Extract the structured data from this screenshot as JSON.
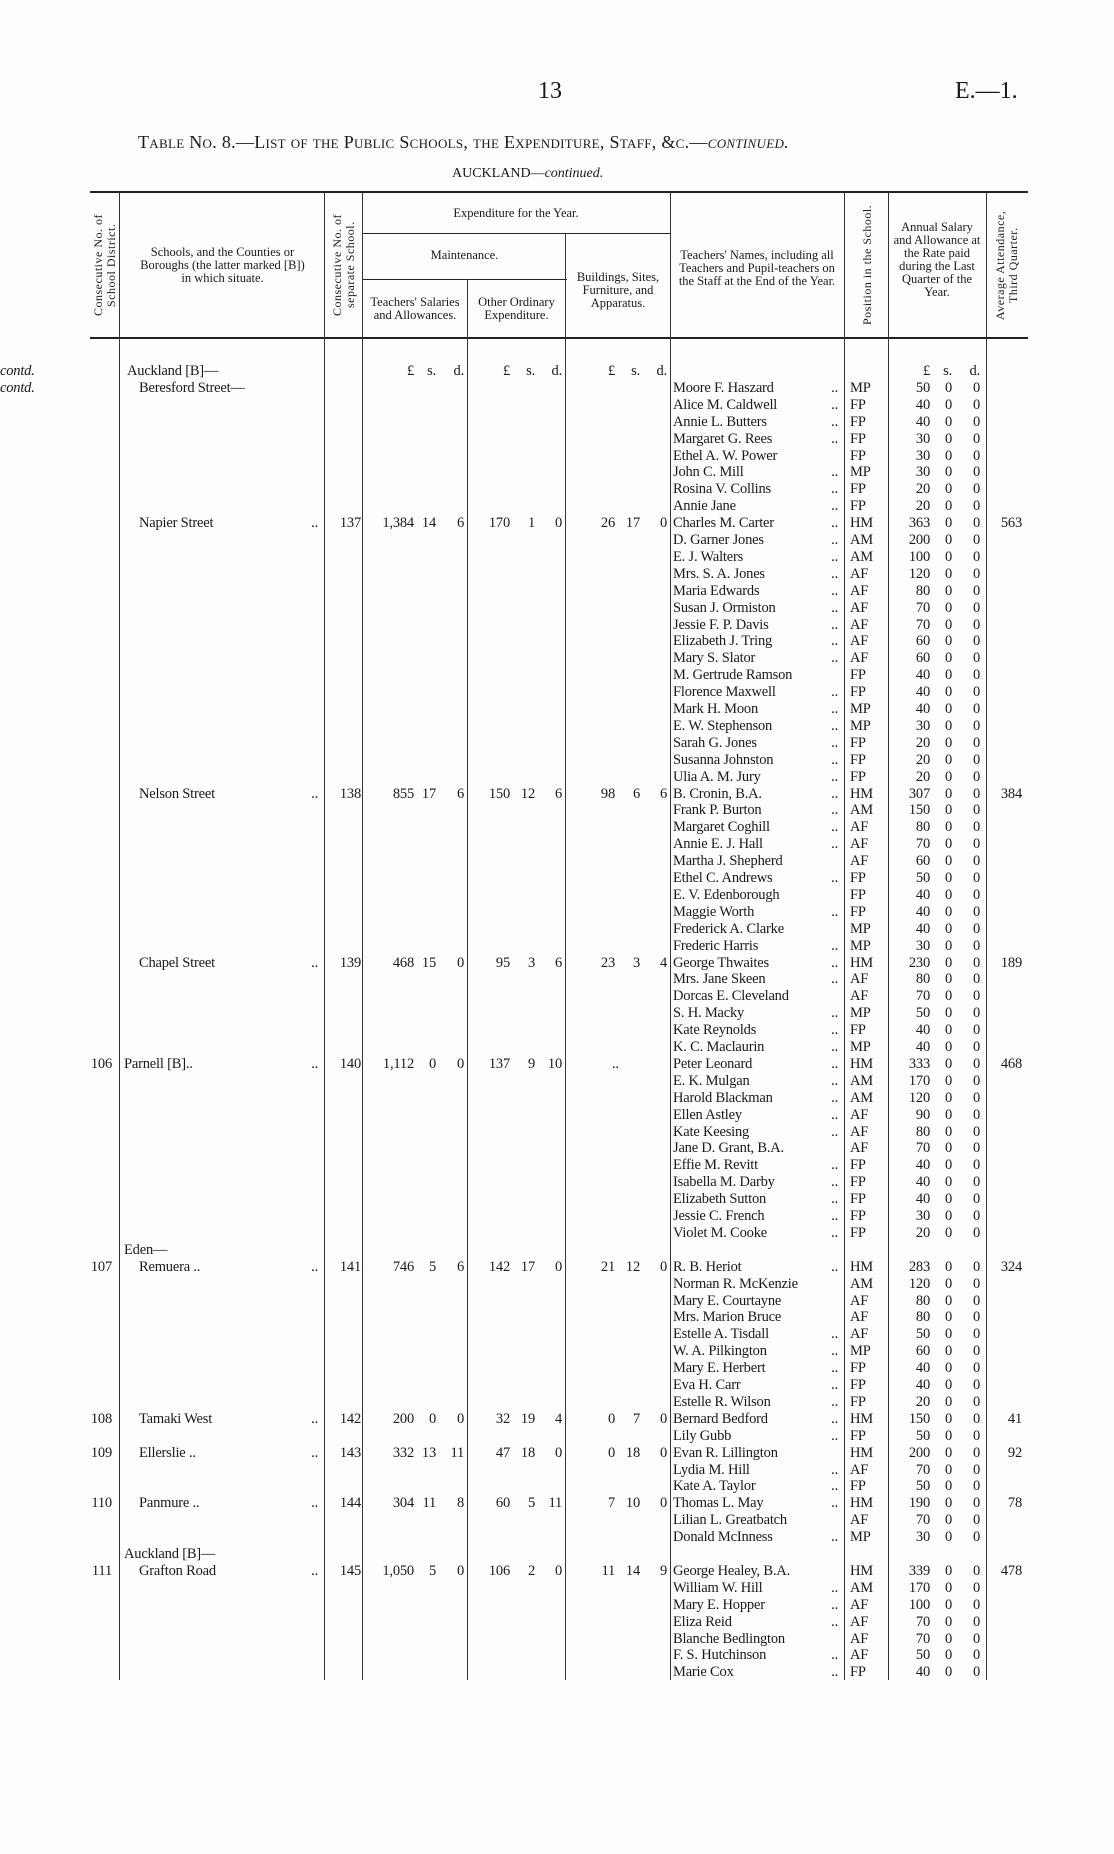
{
  "page": {
    "number": "13",
    "ref": "E.—1."
  },
  "title": {
    "prefix": "Table No. 8.—List of the Public Schools, the Expenditure, Staff, &c.—",
    "italic": "continued."
  },
  "subtitle": {
    "prefix": "AUCKLAND—",
    "italic": "continued."
  },
  "headers": {
    "district": "Consecutive No. of School District.",
    "schools": "Schools, and the Counties or Boroughs (the latter marked [B]) in which situate.",
    "separate": "Consecutive No. of separate School.",
    "expenditure": "Expenditure for the Year.",
    "maintenance": "Maintenance.",
    "teachers_salaries": "Teachers' Salaries and Allowances.",
    "other": "Other Ordinary Expenditure.",
    "buildings": "Buildings, Sites, Furniture, and Apparatus.",
    "names": "Teachers' Names, including all Teachers and Pupil-teachers on the Staff at the End of the Year.",
    "position": "Position in the School.",
    "salary": "Annual Salary and Allowance at the Rate paid during the Last Quarter of the Year.",
    "attendance": "Average Attendance, Third Quarter."
  },
  "units": {
    "pound": "£",
    "s": "s.",
    "d": "d."
  },
  "continued_heading": {
    "text": "Auckland [B]—",
    "italic": "contd."
  },
  "schools": [
    {
      "district": "",
      "prefix": "",
      "name": "Beresford Street—",
      "name_italic": "contd.",
      "leader": "",
      "sep": "",
      "ts": [
        "",
        "",
        ""
      ],
      "oe": [
        "",
        "",
        ""
      ],
      "bs": [
        "",
        "",
        ""
      ],
      "att": "",
      "staff": [
        [
          "Moore F. Haszard",
          "..",
          "MP",
          "50",
          "0",
          "0"
        ],
        [
          "Alice M. Caldwell",
          "..",
          "FP",
          "40",
          "0",
          "0"
        ],
        [
          "Annie L. Butters",
          "..",
          "FP",
          "40",
          "0",
          "0"
        ],
        [
          "Margaret G. Rees",
          "..",
          "FP",
          "30",
          "0",
          "0"
        ],
        [
          "Ethel A. W. Power",
          "",
          "FP",
          "30",
          "0",
          "0"
        ],
        [
          "John C. Mill",
          "..",
          "MP",
          "30",
          "0",
          "0"
        ],
        [
          "Rosina V. Collins",
          "..",
          "FP",
          "20",
          "0",
          "0"
        ],
        [
          "Annie Jane",
          "..",
          "FP",
          "20",
          "0",
          "0"
        ]
      ]
    },
    {
      "district": "",
      "prefix": "",
      "name": "Napier Street",
      "name_italic": "",
      "leader": "..",
      "sep": "137",
      "ts": [
        "1,384",
        "14",
        "6"
      ],
      "oe": [
        "170",
        "1",
        "0"
      ],
      "bs": [
        "26",
        "17",
        "0"
      ],
      "att": "563",
      "staff": [
        [
          "Charles M. Carter",
          "..",
          "HM",
          "363",
          "0",
          "0"
        ],
        [
          "D. Garner Jones",
          "..",
          "AM",
          "200",
          "0",
          "0"
        ],
        [
          "E. J. Walters",
          "..",
          "AM",
          "100",
          "0",
          "0"
        ],
        [
          "Mrs. S. A. Jones",
          "..",
          "AF",
          "120",
          "0",
          "0"
        ],
        [
          "Maria Edwards",
          "..",
          "AF",
          "80",
          "0",
          "0"
        ],
        [
          "Susan J. Ormiston",
          "..",
          "AF",
          "70",
          "0",
          "0"
        ],
        [
          "Jessie F. P. Davis",
          "..",
          "AF",
          "70",
          "0",
          "0"
        ],
        [
          "Elizabeth J. Tring",
          "..",
          "AF",
          "60",
          "0",
          "0"
        ],
        [
          "Mary S. Slator",
          "..",
          "AF",
          "60",
          "0",
          "0"
        ],
        [
          "M. Gertrude Ramson",
          "",
          "FP",
          "40",
          "0",
          "0"
        ],
        [
          "Florence Maxwell",
          "..",
          "FP",
          "40",
          "0",
          "0"
        ],
        [
          "Mark H. Moon",
          "..",
          "MP",
          "40",
          "0",
          "0"
        ],
        [
          "E. W. Stephenson",
          "..",
          "MP",
          "30",
          "0",
          "0"
        ],
        [
          "Sarah G. Jones",
          "..",
          "FP",
          "20",
          "0",
          "0"
        ],
        [
          "Susanna Johnston",
          "..",
          "FP",
          "20",
          "0",
          "0"
        ],
        [
          "Ulia A. M. Jury",
          "..",
          "FP",
          "20",
          "0",
          "0"
        ]
      ]
    },
    {
      "district": "",
      "prefix": "",
      "name": "Nelson Street",
      "name_italic": "",
      "leader": "..",
      "sep": "138",
      "ts": [
        "855",
        "17",
        "6"
      ],
      "oe": [
        "150",
        "12",
        "6"
      ],
      "bs": [
        "98",
        "6",
        "6"
      ],
      "att": "384",
      "staff": [
        [
          "B. Cronin, B.A.",
          "..",
          "HM",
          "307",
          "0",
          "0"
        ],
        [
          "Frank P. Burton",
          "..",
          "AM",
          "150",
          "0",
          "0"
        ],
        [
          "Margaret Coghill",
          "..",
          "AF",
          "80",
          "0",
          "0"
        ],
        [
          "Annie E. J. Hall",
          "..",
          "AF",
          "70",
          "0",
          "0"
        ],
        [
          "Martha J. Shepherd",
          "",
          "AF",
          "60",
          "0",
          "0"
        ],
        [
          "Ethel C. Andrews",
          "..",
          "FP",
          "50",
          "0",
          "0"
        ],
        [
          "E. V. Edenborough",
          "",
          "FP",
          "40",
          "0",
          "0"
        ],
        [
          "Maggie Worth",
          "..",
          "FP",
          "40",
          "0",
          "0"
        ],
        [
          "Frederick A. Clarke",
          "",
          "MP",
          "40",
          "0",
          "0"
        ],
        [
          "Frederic Harris",
          "..",
          "MP",
          "30",
          "0",
          "0"
        ]
      ]
    },
    {
      "district": "",
      "prefix": "",
      "name": "Chapel Street",
      "name_italic": "",
      "leader": "..",
      "sep": "139",
      "ts": [
        "468",
        "15",
        "0"
      ],
      "oe": [
        "95",
        "3",
        "6"
      ],
      "bs": [
        "23",
        "3",
        "4"
      ],
      "att": "189",
      "staff": [
        [
          "George Thwaites",
          "..",
          "HM",
          "230",
          "0",
          "0"
        ],
        [
          "Mrs. Jane Skeen",
          "..",
          "AF",
          "80",
          "0",
          "0"
        ],
        [
          "Dorcas E. Cleveland",
          "",
          "AF",
          "70",
          "0",
          "0"
        ],
        [
          "S. H. Macky",
          "..",
          "MP",
          "50",
          "0",
          "0"
        ],
        [
          "Kate Reynolds",
          "..",
          "FP",
          "40",
          "0",
          "0"
        ],
        [
          "K. C. Maclaurin",
          "..",
          "MP",
          "40",
          "0",
          "0"
        ]
      ]
    },
    {
      "district": "106",
      "prefix": "",
      "name": "Parnell [B]..",
      "name_italic": "",
      "leader": "..",
      "sep": "140",
      "ts": [
        "1,112",
        "0",
        "0"
      ],
      "oe": [
        "137",
        "9",
        "10"
      ],
      "bs": [
        "..",
        "",
        ""
      ],
      "att": "468",
      "flush": true,
      "staff": [
        [
          "Peter Leonard",
          "..",
          "HM",
          "333",
          "0",
          "0"
        ],
        [
          "E. K. Mulgan",
          "..",
          "AM",
          "170",
          "0",
          "0"
        ],
        [
          "Harold Blackman",
          "..",
          "AM",
          "120",
          "0",
          "0"
        ],
        [
          "Ellen Astley",
          "..",
          "AF",
          "90",
          "0",
          "0"
        ],
        [
          "Kate Keesing",
          "..",
          "AF",
          "80",
          "0",
          "0"
        ],
        [
          "Jane D. Grant, B.A.",
          "",
          "AF",
          "70",
          "0",
          "0"
        ],
        [
          "Effie M. Revitt",
          "..",
          "FP",
          "40",
          "0",
          "0"
        ],
        [
          "Isabella M. Darby",
          "..",
          "FP",
          "40",
          "0",
          "0"
        ],
        [
          "Elizabeth Sutton",
          "..",
          "FP",
          "40",
          "0",
          "0"
        ],
        [
          "Jessie C. French",
          "..",
          "FP",
          "30",
          "0",
          "0"
        ],
        [
          "Violet M. Cooke",
          "..",
          "FP",
          "20",
          "0",
          "0"
        ]
      ]
    },
    {
      "district": "107",
      "prefix": "Eden—",
      "name": "Remuera  ..",
      "name_italic": "",
      "leader": "..",
      "sep": "141",
      "ts": [
        "746",
        "5",
        "6"
      ],
      "oe": [
        "142",
        "17",
        "0"
      ],
      "bs": [
        "21",
        "12",
        "0"
      ],
      "att": "324",
      "staff": [
        [
          "R. B. Heriot",
          "..",
          "HM",
          "283",
          "0",
          "0"
        ],
        [
          "Norman R. McKenzie",
          "",
          "AM",
          "120",
          "0",
          "0"
        ],
        [
          "Mary E. Courtayne",
          "",
          "AF",
          "80",
          "0",
          "0"
        ],
        [
          "Mrs. Marion Bruce",
          "",
          "AF",
          "80",
          "0",
          "0"
        ],
        [
          "Estelle A. Tisdall",
          "..",
          "AF",
          "50",
          "0",
          "0"
        ],
        [
          "W. A. Pilkington",
          "..",
          "MP",
          "60",
          "0",
          "0"
        ],
        [
          "Mary E. Herbert",
          "..",
          "FP",
          "40",
          "0",
          "0"
        ],
        [
          "Eva H. Carr",
          "..",
          "FP",
          "40",
          "0",
          "0"
        ],
        [
          "Estelle R. Wilson",
          "..",
          "FP",
          "20",
          "0",
          "0"
        ]
      ]
    },
    {
      "district": "108",
      "prefix": "",
      "name": "Tamaki West",
      "name_italic": "",
      "leader": "..",
      "sep": "142",
      "ts": [
        "200",
        "0",
        "0"
      ],
      "oe": [
        "32",
        "19",
        "4"
      ],
      "bs": [
        "0",
        "7",
        "0"
      ],
      "att": "41",
      "staff": [
        [
          "Bernard Bedford",
          "..",
          "HM",
          "150",
          "0",
          "0"
        ],
        [
          "Lily Gubb",
          "..",
          "FP",
          "50",
          "0",
          "0"
        ]
      ]
    },
    {
      "district": "109",
      "prefix": "",
      "name": "Ellerslie  ..",
      "name_italic": "",
      "leader": "..",
      "sep": "143",
      "ts": [
        "332",
        "13",
        "11"
      ],
      "oe": [
        "47",
        "18",
        "0"
      ],
      "bs": [
        "0",
        "18",
        "0"
      ],
      "att": "92",
      "staff": [
        [
          "Evan R. Lillington",
          "",
          "HM",
          "200",
          "0",
          "0"
        ],
        [
          "Lydia M. Hill",
          "..",
          "AF",
          "70",
          "0",
          "0"
        ],
        [
          "Kate A. Taylor",
          "..",
          "FP",
          "50",
          "0",
          "0"
        ]
      ]
    },
    {
      "district": "110",
      "prefix": "",
      "name": "Panmure  ..",
      "name_italic": "",
      "leader": "..",
      "sep": "144",
      "ts": [
        "304",
        "11",
        "8"
      ],
      "oe": [
        "60",
        "5",
        "11"
      ],
      "bs": [
        "7",
        "10",
        "0"
      ],
      "att": "78",
      "staff": [
        [
          "Thomas L. May",
          "..",
          "HM",
          "190",
          "0",
          "0"
        ],
        [
          "Lilian L. Greatbatch",
          "",
          "AF",
          "70",
          "0",
          "0"
        ],
        [
          "Donald McInness",
          "..",
          "MP",
          "30",
          "0",
          "0"
        ]
      ]
    },
    {
      "district": "111",
      "prefix": "Auckland [B]—",
      "name": "Grafton Road",
      "name_italic": "",
      "leader": "..",
      "sep": "145",
      "ts": [
        "1,050",
        "5",
        "0"
      ],
      "oe": [
        "106",
        "2",
        "0"
      ],
      "bs": [
        "11",
        "14",
        "9"
      ],
      "att": "478",
      "staff": [
        [
          "George Healey, B.A.",
          "",
          "HM",
          "339",
          "0",
          "0"
        ],
        [
          "William W. Hill",
          "..",
          "AM",
          "170",
          "0",
          "0"
        ],
        [
          "Mary E. Hopper",
          "..",
          "AF",
          "100",
          "0",
          "0"
        ],
        [
          "Eliza Reid",
          "..",
          "AF",
          "70",
          "0",
          "0"
        ],
        [
          "Blanche Bedlington",
          "",
          "AF",
          "70",
          "0",
          "0"
        ],
        [
          "F. S. Hutchinson",
          "..",
          "AF",
          "50",
          "0",
          "0"
        ],
        [
          "Marie Cox",
          "..",
          "FP",
          "40",
          "0",
          "0"
        ]
      ]
    }
  ]
}
